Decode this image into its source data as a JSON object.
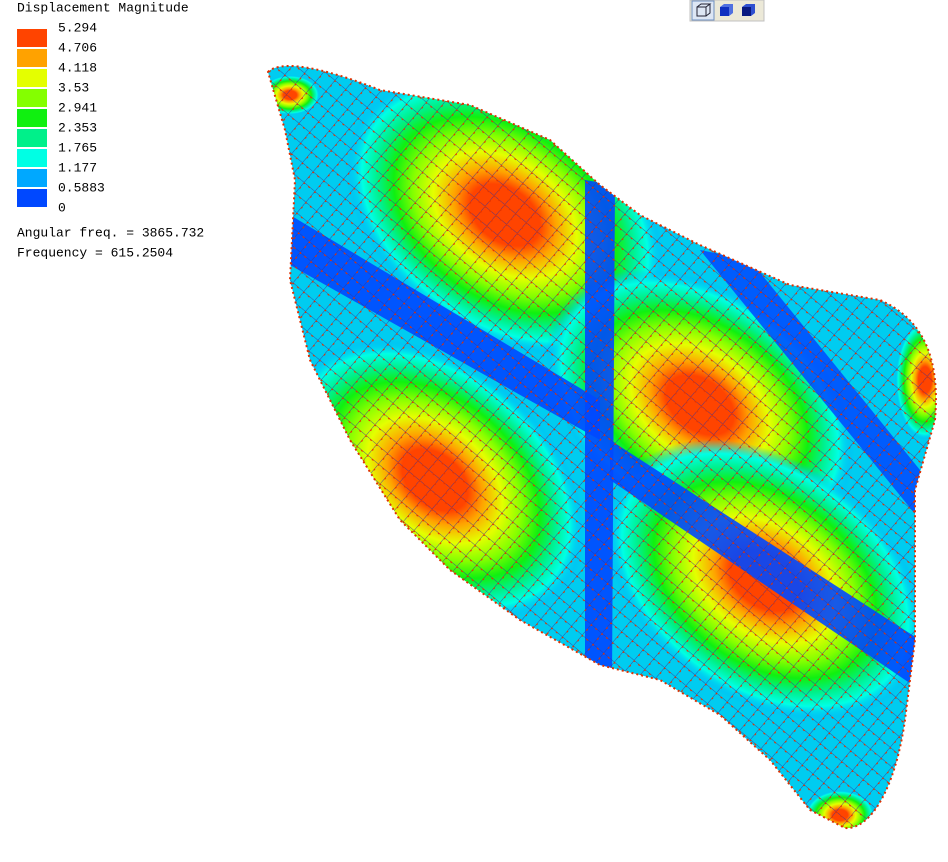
{
  "legend": {
    "title": "Displacement Magnitude",
    "labels": [
      "5.294",
      "4.706",
      "4.118",
      "3.53",
      "2.941",
      "2.353",
      "1.765",
      "1.177",
      "0.5883",
      "0"
    ],
    "colors": [
      "#ff4400",
      "#ffa200",
      "#e4ff00",
      "#84ff00",
      "#10f010",
      "#00f08a",
      "#00ffe4",
      "#00a8ff",
      "#0048ff"
    ]
  },
  "info": [
    "Angular freq. = 3865.732",
    "Frequency = 615.2504"
  ]
}
